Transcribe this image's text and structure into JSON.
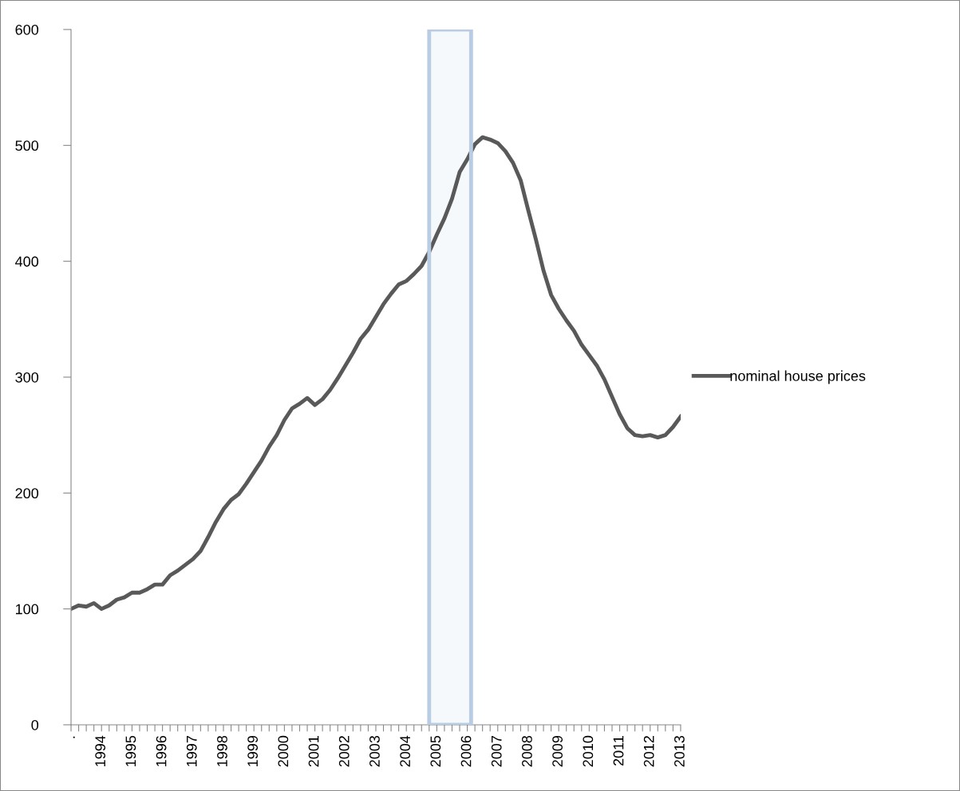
{
  "chart_data": {
    "type": "line",
    "x": [
      1993,
      1993.25,
      1993.5,
      1993.75,
      1994,
      1994.25,
      1994.5,
      1994.75,
      1995,
      1995.25,
      1995.5,
      1995.75,
      1996,
      1996.25,
      1996.5,
      1996.75,
      1997,
      1997.25,
      1997.5,
      1997.75,
      1998,
      1998.25,
      1998.5,
      1998.75,
      1999,
      1999.25,
      1999.5,
      1999.75,
      2000,
      2000.25,
      2000.5,
      2000.75,
      2001,
      2001.25,
      2001.5,
      2001.75,
      2002,
      2002.25,
      2002.5,
      2002.75,
      2003,
      2003.25,
      2003.5,
      2003.75,
      2004,
      2004.25,
      2004.5,
      2004.75,
      2005,
      2005.25,
      2005.5,
      2005.75,
      2006,
      2006.25,
      2006.5,
      2006.75,
      2007,
      2007.25,
      2007.5,
      2007.75,
      2008,
      2008.25,
      2008.5,
      2008.75,
      2009,
      2009.25,
      2009.5,
      2009.75,
      2010,
      2010.25,
      2010.5,
      2010.75,
      2011,
      2011.25,
      2011.5,
      2011.75,
      2012,
      2012.25,
      2012.5,
      2012.75,
      2013
    ],
    "series": [
      {
        "name": "nominal house prices",
        "color": "#595959",
        "values": [
          100,
          103,
          102,
          105,
          100,
          103,
          108,
          110,
          114,
          114,
          117,
          121,
          121,
          129,
          133,
          138,
          143,
          150,
          162,
          175,
          186,
          194,
          199,
          208,
          218,
          228,
          240,
          250,
          263,
          273,
          277,
          282,
          276,
          281,
          289,
          299,
          310,
          321,
          333,
          341,
          352,
          363,
          372,
          380,
          383,
          389,
          396,
          408,
          423,
          437,
          454,
          477,
          488,
          501,
          507,
          505,
          502,
          495,
          485,
          470,
          444,
          419,
          392,
          371,
          359,
          349,
          340,
          328,
          319,
          310,
          298,
          283,
          268,
          256,
          250,
          249,
          250,
          248,
          250,
          257,
          266
        ]
      }
    ],
    "xlim": [
      1993,
      2013
    ],
    "xticks": [
      {
        "value": 1993,
        "label": "."
      },
      {
        "value": 1993.25,
        "label": null
      },
      {
        "value": 1993.5,
        "label": null
      },
      {
        "value": 1993.75,
        "label": null
      },
      1994,
      {
        "value": 1994.25,
        "label": null
      },
      {
        "value": 1994.5,
        "label": null
      },
      {
        "value": 1994.75,
        "label": null
      },
      1995,
      {
        "value": 1995.25,
        "label": null
      },
      {
        "value": 1995.5,
        "label": null
      },
      {
        "value": 1995.75,
        "label": null
      },
      1996,
      {
        "value": 1996.25,
        "label": null
      },
      {
        "value": 1996.5,
        "label": null
      },
      {
        "value": 1996.75,
        "label": null
      },
      1997,
      {
        "value": 1997.25,
        "label": null
      },
      {
        "value": 1997.5,
        "label": null
      },
      {
        "value": 1997.75,
        "label": null
      },
      1998,
      {
        "value": 1998.25,
        "label": null
      },
      {
        "value": 1998.5,
        "label": null
      },
      {
        "value": 1998.75,
        "label": null
      },
      1999,
      {
        "value": 1999.25,
        "label": null
      },
      {
        "value": 1999.5,
        "label": null
      },
      {
        "value": 1999.75,
        "label": null
      },
      2000,
      {
        "value": 2000.25,
        "label": null
      },
      {
        "value": 2000.5,
        "label": null
      },
      {
        "value": 2000.75,
        "label": null
      },
      2001,
      {
        "value": 2001.25,
        "label": null
      },
      {
        "value": 2001.5,
        "label": null
      },
      {
        "value": 2001.75,
        "label": null
      },
      2002,
      {
        "value": 2002.25,
        "label": null
      },
      {
        "value": 2002.5,
        "label": null
      },
      {
        "value": 2002.75,
        "label": null
      },
      2003,
      {
        "value": 2003.25,
        "label": null
      },
      {
        "value": 2003.5,
        "label": null
      },
      {
        "value": 2003.75,
        "label": null
      },
      2004,
      {
        "value": 2004.25,
        "label": null
      },
      {
        "value": 2004.5,
        "label": null
      },
      {
        "value": 2004.75,
        "label": null
      },
      2005,
      {
        "value": 2005.25,
        "label": null
      },
      {
        "value": 2005.5,
        "label": null
      },
      {
        "value": 2005.75,
        "label": null
      },
      2006,
      {
        "value": 2006.25,
        "label": null
      },
      {
        "value": 2006.5,
        "label": null
      },
      {
        "value": 2006.75,
        "label": null
      },
      2007,
      {
        "value": 2007.25,
        "label": null
      },
      {
        "value": 2007.5,
        "label": null
      },
      {
        "value": 2007.75,
        "label": null
      },
      2008,
      {
        "value": 2008.25,
        "label": null
      },
      {
        "value": 2008.5,
        "label": null
      },
      {
        "value": 2008.75,
        "label": null
      },
      2009,
      {
        "value": 2009.25,
        "label": null
      },
      {
        "value": 2009.5,
        "label": null
      },
      {
        "value": 2009.75,
        "label": null
      },
      2010,
      {
        "value": 2010.25,
        "label": null
      },
      {
        "value": 2010.5,
        "label": null
      },
      {
        "value": 2010.75,
        "label": null
      },
      2011,
      {
        "value": 2011.25,
        "label": null
      },
      {
        "value": 2011.5,
        "label": null
      },
      {
        "value": 2011.75,
        "label": null
      },
      2012,
      {
        "value": 2012.25,
        "label": null
      },
      {
        "value": 2012.5,
        "label": null
      },
      {
        "value": 2012.75,
        "label": null
      },
      2013
    ],
    "ylim": [
      0,
      600
    ],
    "yticks": [
      0,
      100,
      200,
      300,
      400,
      500,
      600
    ],
    "bands": [
      {
        "axis": "x",
        "from": 2004.75,
        "to": 2006.125,
        "color": "#b8cce4"
      }
    ],
    "grid": false,
    "legend": "right",
    "marker": "none",
    "line_style": "solid"
  }
}
